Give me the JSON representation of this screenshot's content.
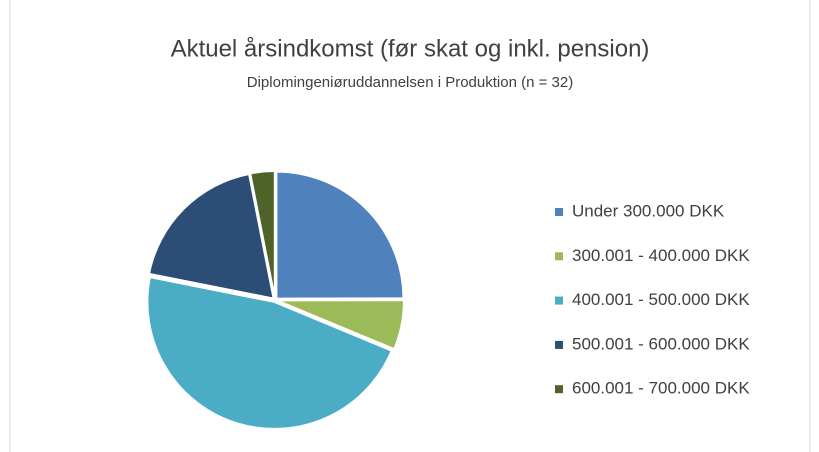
{
  "chart_data": {
    "type": "pie",
    "title": "Aktuel årsindkomst (før skat og inkl. pension)",
    "subtitle": "Diplomingeniøruddannelsen i Produktion (n = 32)",
    "categories": [
      "Under 300.000 DKK",
      "300.001 - 400.000 DKK",
      "400.001 - 500.000 DKK",
      "500.001 - 600.000 DKK",
      "600.001 - 700.000 DKK"
    ],
    "values": [
      25,
      6.3,
      46.9,
      18.8,
      3.1
    ],
    "colors": [
      "#4f81bd",
      "#9bbb59",
      "#4bacc6",
      "#2c4d75",
      "#4f6228"
    ],
    "legend": "right"
  }
}
